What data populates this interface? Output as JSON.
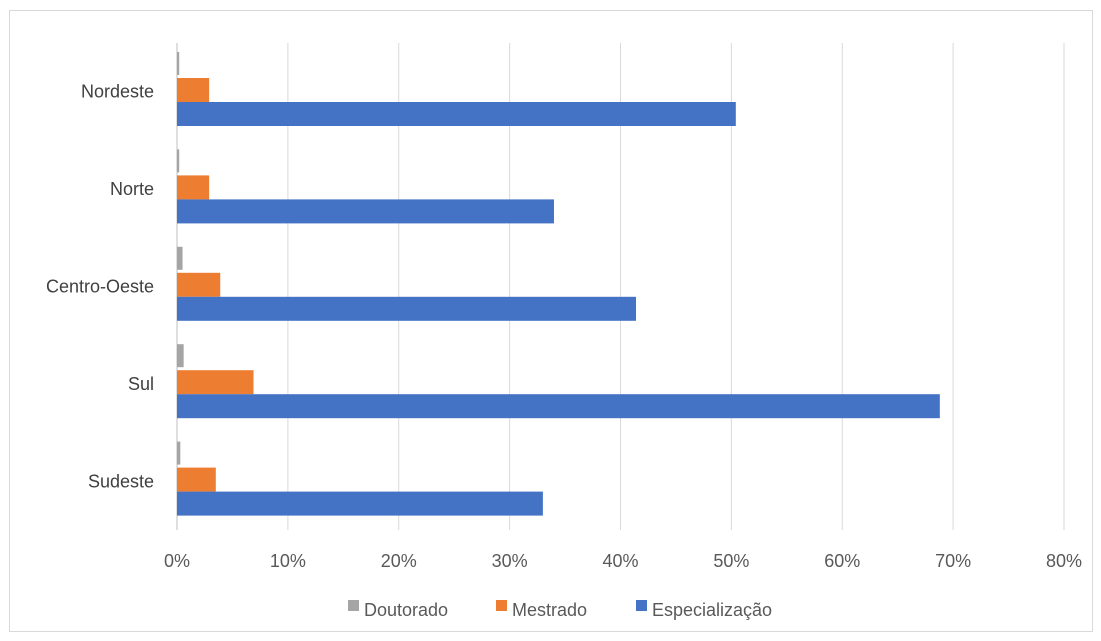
{
  "chart_data": {
    "type": "bar",
    "orientation": "horizontal",
    "categories": [
      "Nordeste",
      "Norte",
      "Centro-Oeste",
      "Sul",
      "Sudeste"
    ],
    "series": [
      {
        "name": "Doutorado",
        "color": "#a5a5a5",
        "values": [
          0.2,
          0.2,
          0.5,
          0.6,
          0.3
        ]
      },
      {
        "name": "Mestrado",
        "color": "#ed7d31",
        "values": [
          2.9,
          2.9,
          3.9,
          6.9,
          3.5
        ]
      },
      {
        "name": "Especialização",
        "color": "#4472c4",
        "values": [
          50.4,
          34.0,
          41.4,
          68.8,
          33.0
        ]
      }
    ],
    "x_ticks": [
      "0%",
      "10%",
      "20%",
      "30%",
      "40%",
      "50%",
      "60%",
      "70%",
      "80%"
    ],
    "xlim": [
      0,
      80
    ],
    "unit": "%",
    "grid": true,
    "legend_position": "bottom"
  }
}
